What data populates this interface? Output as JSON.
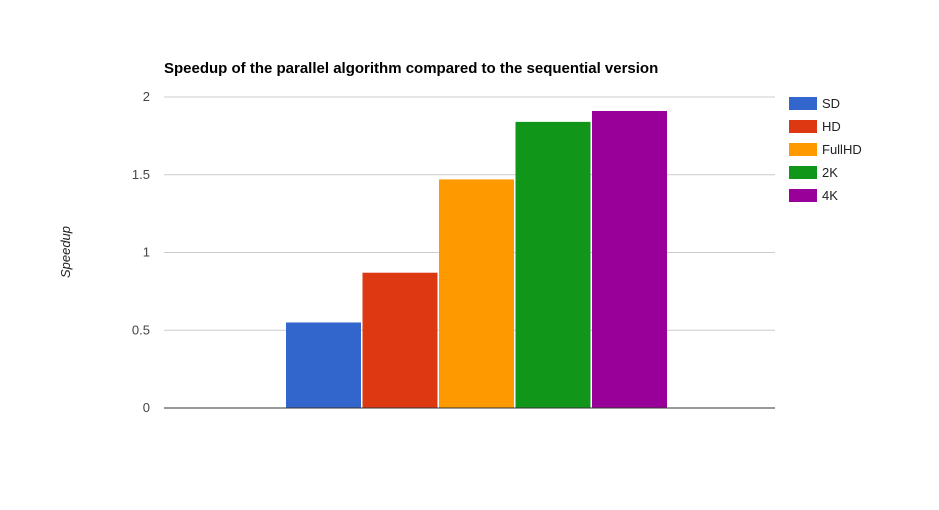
{
  "chart_data": {
    "type": "bar",
    "title": "Speedup of the parallel algorithm compared to the sequential version",
    "xlabel": "",
    "ylabel": "Speedup",
    "ylim": [
      0,
      2
    ],
    "yticks": [
      "0",
      "0.5",
      "1",
      "1.5",
      "2"
    ],
    "grid": true,
    "legend_position": "right",
    "categories": [
      ""
    ],
    "series": [
      {
        "name": "SD",
        "color": "#3366cc",
        "values": [
          0.55
        ]
      },
      {
        "name": "HD",
        "color": "#dc3912",
        "values": [
          0.87
        ]
      },
      {
        "name": "FullHD",
        "color": "#ff9900",
        "values": [
          1.47
        ]
      },
      {
        "name": "2K",
        "color": "#109618",
        "values": [
          1.84
        ]
      },
      {
        "name": "4K",
        "color": "#990099",
        "values": [
          1.91
        ]
      }
    ]
  }
}
